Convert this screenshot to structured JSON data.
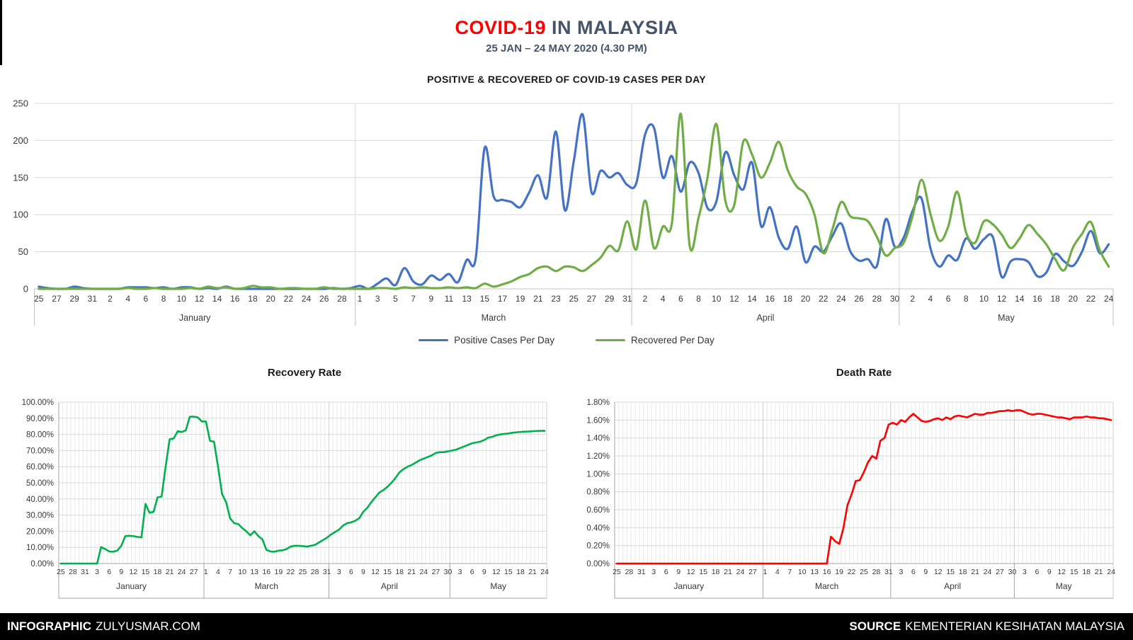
{
  "header": {
    "title_red": "COVID-19",
    "title_rest": "IN MALAYSIA",
    "subtitle": "25 JAN – 24 MAY 2020 (4.30 PM)"
  },
  "footer": {
    "left_label": "INFOGRAPHIC",
    "left_value": "ZULYUSMAR.COM",
    "right_label": "SOURCE",
    "right_value": "KEMENTERIAN KESIHATAN MALAYSIA"
  },
  "colors": {
    "positive": "#4472C4",
    "recovered": "#70AD47",
    "recovery_rate": "#00B050",
    "death_rate": "#FF0000",
    "grid": "#D9D9D9",
    "minor_grid": "#E9E9E9",
    "axis": "#A6A6A6",
    "band_line": "#BFBFBF",
    "text": "#383838",
    "title_red": "#FF0000",
    "title_dark": "#44546A",
    "footer_bg": "#000000",
    "footer_text": "#FFFFFF"
  },
  "chart_data": [
    {
      "id": "daily-cases",
      "type": "line",
      "smooth": true,
      "title": "POSITIVE & RECOVERED OF COVID-19 CASES PER DAY",
      "xlabel": "",
      "ylabel": "",
      "ylim": [
        0,
        250
      ],
      "y_ticks": [
        0,
        50,
        100,
        150,
        200,
        250
      ],
      "grid": true,
      "legend_position": "bottom",
      "x_start": "25 Jan 2020",
      "x_end": "24 May 2020",
      "x_tick_step_days": 2,
      "x_tick_labels": [
        "25",
        "27",
        "29",
        "31",
        "2",
        "4",
        "6",
        "8",
        "10",
        "12",
        "14",
        "16",
        "18",
        "20",
        "22",
        "24",
        "26",
        "28",
        "1",
        "3",
        "5",
        "7",
        "9",
        "11",
        "13",
        "15",
        "17",
        "19",
        "21",
        "23",
        "25",
        "27",
        "29",
        "31",
        "2",
        "4",
        "6",
        "8",
        "10",
        "12",
        "14",
        "16",
        "18",
        "20",
        "22",
        "24",
        "26",
        "28",
        "30",
        "2",
        "4",
        "6",
        "8",
        "10",
        "12",
        "14",
        "16",
        "18",
        "20",
        "22",
        "24"
      ],
      "months": [
        {
          "label": "January",
          "start_day": 0,
          "end_day": 35
        },
        {
          "label": "March",
          "start_day": 36,
          "end_day": 66
        },
        {
          "label": "April",
          "start_day": 67,
          "end_day": 96
        },
        {
          "label": "May",
          "start_day": 97,
          "end_day": 120
        }
      ],
      "series": [
        {
          "name": "Positive Cases Per Day",
          "color": "#4472C4",
          "values": [
            3,
            1,
            0,
            0,
            3,
            1,
            0,
            0,
            0,
            0,
            2,
            2,
            2,
            1,
            2,
            0,
            2,
            2,
            0,
            1,
            0,
            3,
            0,
            0,
            0,
            0,
            0,
            0,
            0,
            0,
            0,
            0,
            0,
            1,
            0,
            1,
            4,
            0,
            7,
            14,
            5,
            28,
            10,
            6,
            18,
            12,
            20,
            9,
            39,
            41,
            190,
            125,
            120,
            117,
            110,
            130,
            153,
            123,
            212,
            106,
            172,
            235,
            130,
            159,
            150,
            156,
            140,
            142,
            208,
            217,
            150,
            179,
            131,
            170,
            156,
            109,
            118,
            184,
            153,
            134,
            170,
            85,
            110,
            69,
            54,
            84,
            36,
            57,
            50,
            71,
            88,
            51,
            38,
            40,
            31,
            94,
            57,
            69,
            105,
            122,
            55,
            30,
            45,
            39,
            68,
            54,
            67,
            70,
            16,
            37,
            40,
            36,
            17,
            22,
            47,
            37,
            31,
            50,
            78,
            48,
            60
          ]
        },
        {
          "name": "Recovered Per Day",
          "color": "#70AD47",
          "values": [
            0,
            0,
            0,
            0,
            0,
            0,
            0,
            0,
            0,
            0,
            1,
            0,
            0,
            1,
            0,
            0,
            0,
            1,
            0,
            3,
            1,
            2,
            0,
            1,
            4,
            2,
            2,
            0,
            1,
            1,
            0,
            0,
            2,
            0,
            0,
            0,
            0,
            0,
            1,
            1,
            0,
            2,
            1,
            2,
            1,
            1,
            2,
            1,
            2,
            1,
            7,
            3,
            6,
            10,
            16,
            20,
            28,
            30,
            24,
            30,
            29,
            24,
            32,
            42,
            58,
            52,
            91,
            53,
            119,
            55,
            84,
            88,
            236,
            58,
            96,
            150,
            222,
            119,
            113,
            198,
            181,
            150,
            170,
            198,
            160,
            138,
            128,
            100,
            48,
            80,
            117,
            98,
            95,
            91,
            70,
            45,
            55,
            62,
            98,
            147,
            101,
            65,
            84,
            131,
            76,
            62,
            91,
            87,
            73,
            55,
            68,
            86,
            74,
            60,
            40,
            25,
            56,
            74,
            90,
            52,
            30
          ]
        }
      ]
    },
    {
      "id": "recovery-rate",
      "type": "line",
      "smooth": false,
      "title": "Recovery Rate",
      "ylim": [
        0,
        100
      ],
      "y_ticks": [
        0,
        10,
        20,
        30,
        40,
        50,
        60,
        70,
        80,
        90,
        100
      ],
      "y_tick_labels": [
        "0.00%",
        "10.00%",
        "20.00%",
        "30.00%",
        "40.00%",
        "50.00%",
        "60.00%",
        "70.00%",
        "80.00%",
        "90.00%",
        "100.00%"
      ],
      "grid": true,
      "minor_daily_grid": true,
      "x_tick_step_days": 3,
      "x_tick_labels": [
        "25",
        "28",
        "31",
        "3",
        "6",
        "9",
        "12",
        "15",
        "18",
        "21",
        "24",
        "27",
        "1",
        "4",
        "7",
        "10",
        "13",
        "16",
        "19",
        "22",
        "25",
        "28",
        "31",
        "3",
        "6",
        "9",
        "12",
        "15",
        "18",
        "21",
        "24",
        "27",
        "30",
        "3",
        "6",
        "9",
        "12",
        "15",
        "18",
        "21",
        "24"
      ],
      "months": [
        {
          "label": "January",
          "start_day": 0,
          "end_day": 35
        },
        {
          "label": "March",
          "start_day": 36,
          "end_day": 66
        },
        {
          "label": "April",
          "start_day": 67,
          "end_day": 96
        },
        {
          "label": "May",
          "start_day": 97,
          "end_day": 120
        }
      ],
      "series": [
        {
          "name": "Recovery Rate",
          "color": "#00B050",
          "values": [
            0,
            0,
            0,
            0,
            0,
            0,
            0,
            0,
            0,
            0,
            10.2,
            9,
            7.5,
            7.3,
            8,
            11,
            17,
            17.2,
            17,
            16.5,
            16.2,
            37,
            31.5,
            32,
            41,
            41.5,
            60,
            77,
            77.5,
            82,
            81.5,
            82.5,
            91,
            91,
            90.5,
            88,
            88,
            76,
            75.5,
            60,
            43,
            38,
            28,
            25,
            24.5,
            22,
            20,
            17.5,
            20,
            17,
            15,
            8.5,
            7.5,
            7.3,
            8,
            8.2,
            9,
            10.5,
            11,
            11,
            10.8,
            10.5,
            11,
            11.5,
            13,
            14.5,
            16,
            18,
            19.5,
            21,
            23.5,
            25,
            25.5,
            26.5,
            28,
            32,
            34.5,
            38,
            41,
            44,
            45.5,
            47.5,
            50,
            53,
            56.5,
            58.5,
            60,
            61,
            62.5,
            64,
            65,
            66,
            67,
            68.5,
            69,
            69,
            69.5,
            70,
            70.5,
            71.5,
            72.5,
            73.5,
            74.5,
            75,
            75.5,
            76.5,
            78,
            78.5,
            79.5,
            80,
            80.3,
            80.6,
            81,
            81.3,
            81.5,
            81.7,
            81.8,
            82,
            82.1,
            82.2,
            82.2
          ]
        }
      ]
    },
    {
      "id": "death-rate",
      "type": "line",
      "smooth": false,
      "title": "Death Rate",
      "ylim": [
        0,
        1.8
      ],
      "y_ticks": [
        0,
        0.2,
        0.4,
        0.6,
        0.8,
        1.0,
        1.2,
        1.4,
        1.6,
        1.8
      ],
      "y_tick_labels": [
        "0.00%",
        "0.20%",
        "0.40%",
        "0.60%",
        "0.80%",
        "1.00%",
        "1.20%",
        "1.40%",
        "1.60%",
        "1.80%"
      ],
      "grid": true,
      "minor_daily_grid": true,
      "x_tick_step_days": 3,
      "x_tick_labels": [
        "25",
        "28",
        "31",
        "3",
        "6",
        "9",
        "12",
        "15",
        "18",
        "21",
        "24",
        "27",
        "1",
        "4",
        "7",
        "10",
        "13",
        "16",
        "19",
        "22",
        "25",
        "28",
        "31",
        "3",
        "6",
        "9",
        "12",
        "15",
        "18",
        "21",
        "24",
        "27",
        "30",
        "3",
        "6",
        "9",
        "12",
        "15",
        "18",
        "21",
        "24"
      ],
      "months": [
        {
          "label": "January",
          "start_day": 0,
          "end_day": 35
        },
        {
          "label": "March",
          "start_day": 36,
          "end_day": 66
        },
        {
          "label": "April",
          "start_day": 67,
          "end_day": 96
        },
        {
          "label": "May",
          "start_day": 97,
          "end_day": 120
        }
      ],
      "series": [
        {
          "name": "Death Rate",
          "color": "#FF0000",
          "values": [
            0,
            0,
            0,
            0,
            0,
            0,
            0,
            0,
            0,
            0,
            0,
            0,
            0,
            0,
            0,
            0,
            0,
            0,
            0,
            0,
            0,
            0,
            0,
            0,
            0,
            0,
            0,
            0,
            0,
            0,
            0,
            0,
            0,
            0,
            0,
            0,
            0,
            0,
            0,
            0,
            0,
            0,
            0,
            0,
            0,
            0,
            0,
            0,
            0,
            0,
            0,
            0,
            0.3,
            0.25,
            0.22,
            0.39,
            0.65,
            0.77,
            0.92,
            0.93,
            1.02,
            1.13,
            1.2,
            1.17,
            1.37,
            1.4,
            1.55,
            1.57,
            1.55,
            1.6,
            1.58,
            1.63,
            1.67,
            1.63,
            1.59,
            1.58,
            1.59,
            1.61,
            1.62,
            1.6,
            1.63,
            1.61,
            1.64,
            1.65,
            1.64,
            1.63,
            1.65,
            1.67,
            1.66,
            1.66,
            1.68,
            1.68,
            1.69,
            1.7,
            1.7,
            1.71,
            1.7,
            1.71,
            1.71,
            1.69,
            1.67,
            1.66,
            1.67,
            1.67,
            1.66,
            1.65,
            1.64,
            1.63,
            1.63,
            1.62,
            1.61,
            1.63,
            1.63,
            1.63,
            1.64,
            1.63,
            1.63,
            1.62,
            1.62,
            1.61,
            1.6
          ]
        }
      ]
    }
  ]
}
